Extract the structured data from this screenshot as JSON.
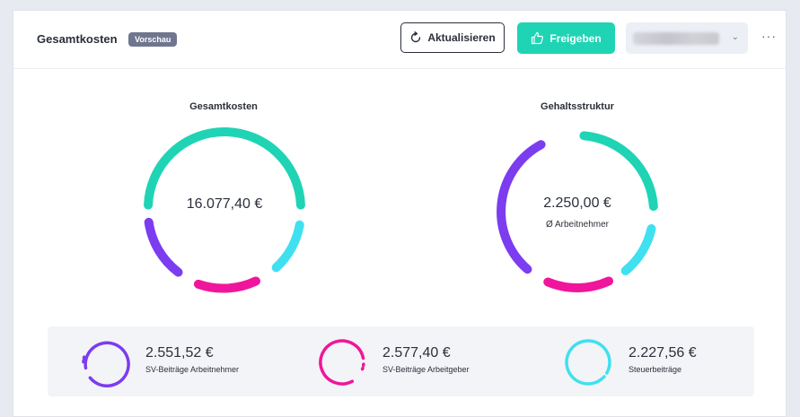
{
  "header": {
    "title": "Gesamtkosten",
    "badge": "Vorschau",
    "refresh_label": "Aktualisieren",
    "share_label": "Freigeben",
    "more_label": "···"
  },
  "icons": {
    "refresh": "refresh-icon",
    "share": "thumbs-up-icon",
    "dropdown": "chevron-down-icon"
  },
  "colors": {
    "teal": "#1fd4b4",
    "purple": "#7c3cf0",
    "pink": "#f0169b",
    "cyan": "#3fe0f0"
  },
  "charts": {
    "total": {
      "title": "Gesamtkosten",
      "value": "16.077,40 €"
    },
    "salary": {
      "title": "Gehaltsstruktur",
      "value": "2.250,00 €",
      "subtitle": "Ø Arbeitnehmer"
    }
  },
  "summary": [
    {
      "amount": "2.551,52 €",
      "label": "SV-Beiträge Arbeitnehmer"
    },
    {
      "amount": "2.577,40 €",
      "label": "SV-Beiträge Arbeitgeber"
    },
    {
      "amount": "2.227,56 €",
      "label": "Steuerbeiträge"
    }
  ]
}
